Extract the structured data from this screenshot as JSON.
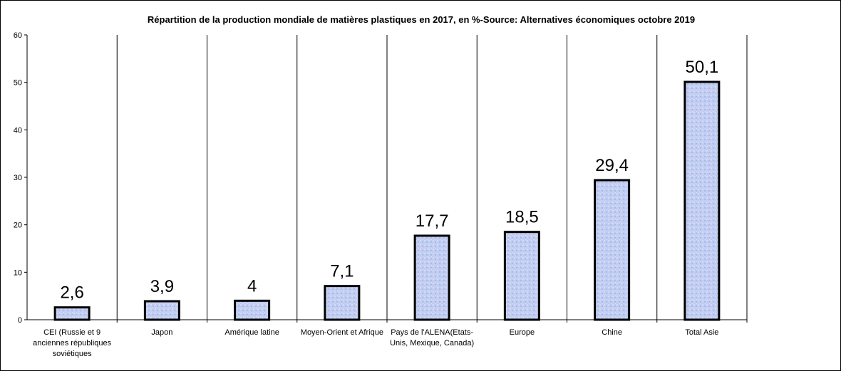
{
  "chart_data": {
    "type": "bar",
    "title": "Répartition de la production mondiale de matières plastiques en 2017, en %-Source: Alternatives économiques octobre 2019",
    "categories": [
      [
        "CEI (Russie et 9",
        "anciennes républiques",
        "soviétiques"
      ],
      [
        "Japon"
      ],
      [
        "Amérique latine"
      ],
      [
        "Moyen-Orient et Afrique"
      ],
      [
        "Pays de l'ALENA(Etats-",
        "Unis, Mexique, Canada)"
      ],
      [
        "Europe"
      ],
      [
        "Chine"
      ],
      [
        "Total Asie"
      ]
    ],
    "values": [
      2.6,
      3.9,
      4,
      7.1,
      17.7,
      18.5,
      29.4,
      50.1
    ],
    "data_labels": [
      "2,6",
      "3,9",
      "4",
      "7,1",
      "17,7",
      "18,5",
      "29,4",
      "50,1"
    ],
    "yticks": [
      "0",
      "10",
      "20",
      "30",
      "40",
      "50",
      "60"
    ],
    "ylim": [
      0,
      60
    ],
    "xlabel": "",
    "ylabel": "",
    "grid": "vertical-category-separators",
    "legend": "none",
    "colors": {
      "bar_fill": "#b8c8f0",
      "bar_stroke": "#000000",
      "axis": "#000000"
    }
  }
}
